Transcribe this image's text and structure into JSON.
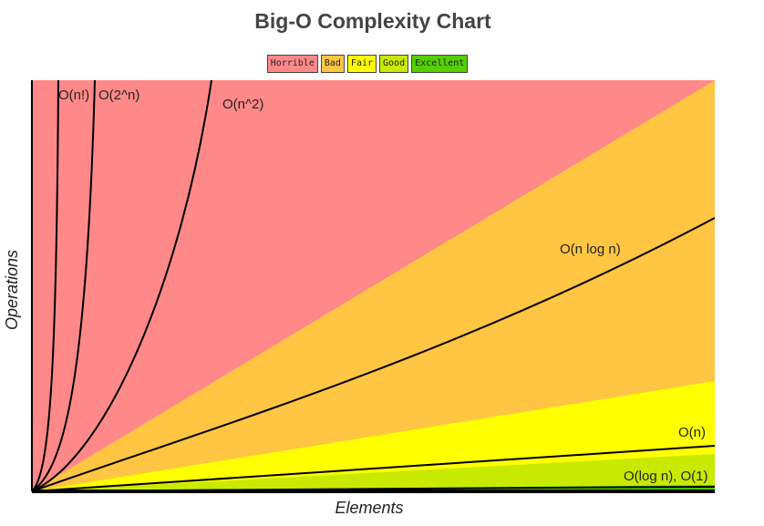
{
  "chart_data": {
    "type": "area",
    "title": "Big-O Complexity Chart",
    "xlabel": "Elements",
    "ylabel": "Operations",
    "legend": [
      {
        "name": "Horrible",
        "color": "#ff8989"
      },
      {
        "name": "Bad",
        "color": "#ffc543"
      },
      {
        "name": "Fair",
        "color": "#ffff00"
      },
      {
        "name": "Good",
        "color": "#c8ea00"
      },
      {
        "name": "Excellent",
        "color": "#53d000"
      }
    ],
    "legend_position": "top-center",
    "series": [
      {
        "name": "O(n!)",
        "label": "O(n!)"
      },
      {
        "name": "O(2^n)",
        "label": "O(2^n)"
      },
      {
        "name": "O(n^2)",
        "label": "O(n^2)"
      },
      {
        "name": "O(n log n)",
        "label": "O(n log n)"
      },
      {
        "name": "O(n)",
        "label": "O(n)"
      },
      {
        "name": "O(log n), O(1)",
        "label": "O(log n), O(1)"
      }
    ],
    "grid": false
  }
}
